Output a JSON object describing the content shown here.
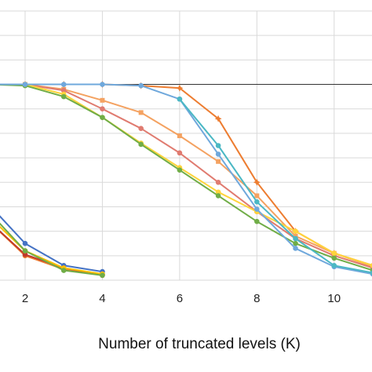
{
  "chart_data": {
    "type": "line",
    "xlabel": "Number of truncated levels (K)",
    "ylabel": "",
    "title": "",
    "x_ticks": [
      2,
      4,
      6,
      8,
      10
    ],
    "xlim": [
      1.35,
      10.98
    ],
    "ylim": [
      0,
      1.1
    ],
    "y_grid": [
      0,
      0.1,
      0.2,
      0.3,
      0.4,
      0.5,
      0.6,
      0.7,
      0.8,
      0.9,
      1.0,
      1.1
    ],
    "grid": true,
    "reference_line": {
      "y": 0.8,
      "color": "#333333"
    },
    "series": [
      {
        "color": "#ed7d31",
        "marker": "star",
        "x": [
          2,
          3,
          4,
          5,
          6,
          7,
          8,
          9,
          10,
          11
        ],
        "y": [
          0.8,
          0.8,
          0.8,
          0.795,
          0.785,
          0.66,
          0.4,
          0.2,
          0.11,
          0.06
        ]
      },
      {
        "color": "#f4a261",
        "marker": "square",
        "x": [
          1,
          2,
          3,
          4,
          5,
          6,
          7,
          8,
          9,
          10,
          11
        ],
        "y": [
          0.8,
          0.8,
          0.78,
          0.735,
          0.685,
          0.59,
          0.485,
          0.345,
          0.18,
          0.11,
          0.055
        ]
      },
      {
        "color": "#e07b70",
        "marker": "circle",
        "x": [
          1,
          2,
          3,
          4,
          5,
          6,
          7,
          8,
          9,
          10,
          11
        ],
        "y": [
          0.8,
          0.8,
          0.775,
          0.7,
          0.62,
          0.52,
          0.4,
          0.28,
          0.17,
          0.1,
          0.05
        ]
      },
      {
        "color": "#ffd43b",
        "marker": "circle",
        "x": [
          1,
          2,
          3,
          4,
          5,
          6,
          7,
          8,
          9,
          10,
          11
        ],
        "y": [
          0.8,
          0.8,
          0.76,
          0.665,
          0.56,
          0.46,
          0.36,
          0.28,
          0.2,
          0.11,
          0.06
        ]
      },
      {
        "color": "#70ad47",
        "marker": "circle",
        "x": [
          1,
          2,
          3,
          4,
          5,
          6,
          7,
          8,
          9,
          10,
          11
        ],
        "y": [
          0.8,
          0.795,
          0.75,
          0.665,
          0.555,
          0.45,
          0.345,
          0.24,
          0.15,
          0.09,
          0.04
        ]
      },
      {
        "color": "#6fa8dc",
        "marker": "circle",
        "x": [
          1,
          2,
          3,
          4,
          5,
          6,
          7,
          8,
          9,
          10,
          11
        ],
        "y": [
          0.8,
          0.8,
          0.8,
          0.8,
          0.795,
          0.74,
          0.515,
          0.29,
          0.13,
          0.055,
          0.025
        ]
      },
      {
        "color": "#4bb8c4",
        "marker": "circle",
        "x": [
          6,
          7,
          8,
          9,
          10,
          11
        ],
        "y": [
          0.74,
          0.55,
          0.32,
          0.17,
          0.06,
          0.03
        ]
      },
      {
        "color": "#4472c4",
        "marker": "circle",
        "x": [
          1,
          2,
          3,
          4
        ],
        "y": [
          0.32,
          0.15,
          0.06,
          0.035
        ]
      },
      {
        "color": "#ed7d31",
        "marker": "circle",
        "x": [
          1,
          2,
          3,
          4
        ],
        "y": [
          0.25,
          0.1,
          0.045,
          0.025
        ]
      },
      {
        "color": "#c0392b",
        "marker": "circle",
        "x": [
          1,
          2,
          3,
          4
        ],
        "y": [
          0.25,
          0.105,
          0.05,
          0.02
        ]
      },
      {
        "color": "#ffc000",
        "marker": "circle",
        "x": [
          1,
          2,
          3,
          4
        ],
        "y": [
          0.27,
          0.12,
          0.05,
          0.025
        ]
      },
      {
        "color": "#70ad47",
        "marker": "circle",
        "x": [
          1,
          2,
          3,
          4
        ],
        "y": [
          0.29,
          0.12,
          0.04,
          0.02
        ]
      }
    ]
  }
}
